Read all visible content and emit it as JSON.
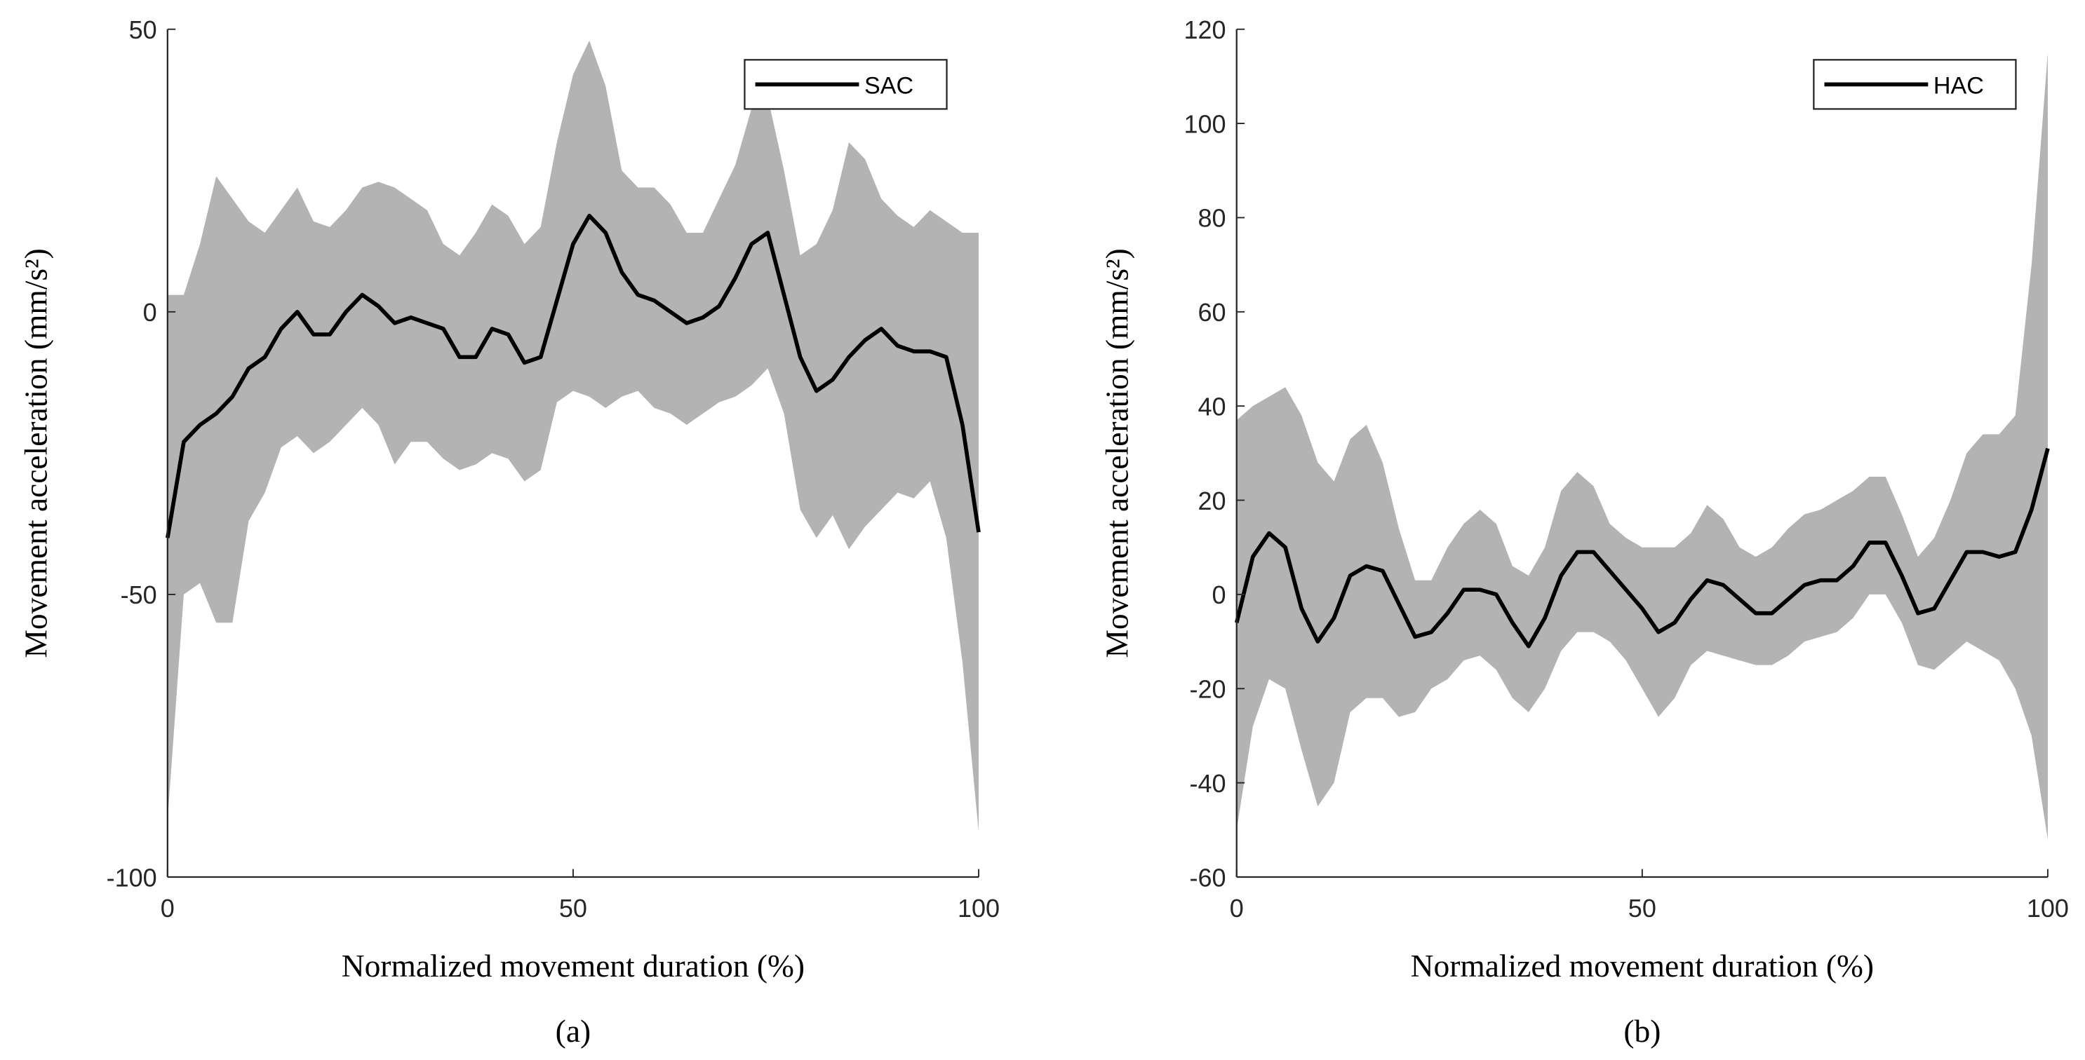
{
  "chart_data": [
    {
      "type": "line",
      "caption": "(a)",
      "xlabel": "Normalized movement duration (%)",
      "ylabel": "Movement acceleration (mm/s²)",
      "xlim": [
        0,
        100
      ],
      "xticks": [
        0,
        50,
        100
      ],
      "ylim": [
        -100,
        50
      ],
      "yticks": [
        -100,
        -50,
        0,
        50
      ],
      "legend": "upper right",
      "x": [
        0,
        2,
        4,
        6,
        8,
        10,
        12,
        14,
        16,
        18,
        20,
        22,
        24,
        26,
        28,
        30,
        32,
        34,
        36,
        38,
        40,
        42,
        44,
        46,
        48,
        50,
        52,
        54,
        56,
        58,
        60,
        62,
        64,
        66,
        68,
        70,
        72,
        74,
        76,
        78,
        80,
        82,
        84,
        86,
        88,
        90,
        92,
        94,
        96,
        98,
        100
      ],
      "series": [
        {
          "name": "SAC",
          "color": "#000000",
          "band_color": "#b3b3b3",
          "values": [
            -40,
            -23,
            -20,
            -18,
            -15,
            -10,
            -8,
            -3,
            0,
            -4,
            -4,
            0,
            3,
            1,
            -2,
            -1,
            -2,
            -3,
            -8,
            -8,
            -3,
            -4,
            -9,
            -8,
            2,
            12,
            17,
            14,
            7,
            3,
            2,
            0,
            -2,
            -1,
            1,
            6,
            12,
            14,
            3,
            -8,
            -14,
            -12,
            -8,
            -5,
            -3,
            -6,
            -7,
            -7,
            -8,
            -20,
            -39
          ],
          "upper": [
            3,
            3,
            12,
            24,
            20,
            16,
            14,
            18,
            22,
            16,
            15,
            18,
            22,
            23,
            22,
            20,
            18,
            12,
            10,
            14,
            19,
            17,
            12,
            15,
            30,
            42,
            48,
            40,
            25,
            22,
            22,
            19,
            14,
            14,
            20,
            26,
            36,
            38,
            25,
            10,
            12,
            18,
            30,
            27,
            20,
            17,
            15,
            18,
            16,
            14,
            14
          ],
          "lower": [
            -90,
            -50,
            -48,
            -55,
            -55,
            -37,
            -32,
            -24,
            -22,
            -25,
            -23,
            -20,
            -17,
            -20,
            -27,
            -23,
            -23,
            -26,
            -28,
            -27,
            -25,
            -26,
            -30,
            -28,
            -16,
            -14,
            -15,
            -17,
            -15,
            -14,
            -17,
            -18,
            -20,
            -18,
            -16,
            -15,
            -13,
            -10,
            -18,
            -35,
            -40,
            -36,
            -42,
            -38,
            -35,
            -32,
            -33,
            -30,
            -40,
            -62,
            -92
          ]
        }
      ]
    },
    {
      "type": "line",
      "caption": "(b)",
      "xlabel": "Normalized movement duration (%)",
      "ylabel": "Movement acceleration (mm/s²)",
      "xlim": [
        0,
        100
      ],
      "xticks": [
        0,
        50,
        100
      ],
      "ylim": [
        -60,
        120
      ],
      "yticks": [
        -60,
        -40,
        -20,
        0,
        20,
        40,
        60,
        80,
        100,
        120
      ],
      "legend": "upper right",
      "x": [
        0,
        2,
        4,
        6,
        8,
        10,
        12,
        14,
        16,
        18,
        20,
        22,
        24,
        26,
        28,
        30,
        32,
        34,
        36,
        38,
        40,
        42,
        44,
        46,
        48,
        50,
        52,
        54,
        56,
        58,
        60,
        62,
        64,
        66,
        68,
        70,
        72,
        74,
        76,
        78,
        80,
        82,
        84,
        86,
        88,
        90,
        92,
        94,
        96,
        98,
        100
      ],
      "series": [
        {
          "name": "HAC",
          "color": "#000000",
          "band_color": "#b3b3b3",
          "values": [
            -6,
            8,
            13,
            10,
            -3,
            -10,
            -5,
            4,
            6,
            5,
            -2,
            -9,
            -8,
            -4,
            1,
            1,
            0,
            -6,
            -11,
            -5,
            4,
            9,
            9,
            5,
            1,
            -3,
            -8,
            -6,
            -1,
            3,
            2,
            -1,
            -4,
            -4,
            -1,
            2,
            3,
            3,
            6,
            11,
            11,
            4,
            -4,
            -3,
            3,
            9,
            9,
            8,
            9,
            18,
            31
          ],
          "upper": [
            37,
            40,
            42,
            44,
            38,
            28,
            24,
            33,
            36,
            28,
            14,
            3,
            3,
            10,
            15,
            18,
            15,
            6,
            4,
            10,
            22,
            26,
            23,
            15,
            12,
            10,
            10,
            10,
            13,
            19,
            16,
            10,
            8,
            10,
            14,
            17,
            18,
            20,
            22,
            25,
            25,
            17,
            8,
            12,
            20,
            30,
            34,
            34,
            38,
            70,
            115
          ],
          "lower": [
            -50,
            -28,
            -18,
            -20,
            -33,
            -45,
            -40,
            -25,
            -22,
            -22,
            -26,
            -25,
            -20,
            -18,
            -14,
            -13,
            -16,
            -22,
            -25,
            -20,
            -12,
            -8,
            -8,
            -10,
            -14,
            -20,
            -26,
            -22,
            -15,
            -12,
            -13,
            -14,
            -15,
            -15,
            -13,
            -10,
            -9,
            -8,
            -5,
            0,
            0,
            -6,
            -15,
            -16,
            -13,
            -10,
            -12,
            -14,
            -20,
            -30,
            -52
          ]
        }
      ]
    }
  ]
}
